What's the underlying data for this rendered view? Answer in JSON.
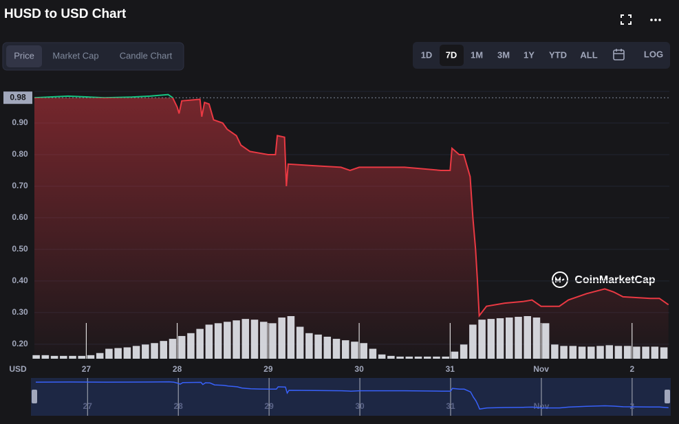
{
  "ui": {
    "title": "HUSD to USD Chart",
    "tabs": [
      "Price",
      "Market Cap",
      "Candle Chart"
    ],
    "ranges": [
      "1D",
      "7D",
      "1M",
      "3M",
      "1Y",
      "YTD",
      "ALL"
    ],
    "log": "LOG",
    "currency": "USD",
    "watermark": "CoinMarketCap"
  },
  "chart_data": {
    "type": "line",
    "color": "#ea3943",
    "color_above": "#16c784",
    "baseline": {
      "value": 0.98,
      "label": "0.98"
    },
    "xlim": [
      26.43,
      33.41
    ],
    "ylim": [
      0.154,
      1.0
    ],
    "xticks": [
      27,
      28,
      29,
      30,
      31,
      {
        "value": 32,
        "label": "Nov"
      },
      {
        "value": 33,
        "label": "2"
      }
    ],
    "yticks": [
      {
        "value": 0.2,
        "label": "0.20"
      },
      {
        "value": 0.3,
        "label": "0.30"
      },
      {
        "value": 0.4,
        "label": "0.40"
      },
      {
        "value": 0.5,
        "label": "0.50"
      },
      {
        "value": 0.6,
        "label": "0.60"
      },
      {
        "value": 0.7,
        "label": "0.70"
      },
      {
        "value": 0.8,
        "label": "0.80"
      },
      {
        "value": 0.9,
        "label": "0.90"
      }
    ],
    "grid": true,
    "series": [
      {
        "name": "Price",
        "color": "#ea3943",
        "x": [
          26.43,
          26.8,
          27.2,
          27.5,
          27.7,
          27.9,
          27.95,
          28.0,
          28.02,
          28.05,
          28.25,
          28.27,
          28.3,
          28.35,
          28.4,
          28.5,
          28.55,
          28.65,
          28.7,
          28.75,
          28.8,
          28.9,
          29.0,
          29.08,
          29.1,
          29.18,
          29.2,
          29.22,
          29.5,
          29.8,
          29.9,
          30.0,
          30.5,
          30.9,
          31.0,
          31.02,
          31.1,
          31.15,
          31.22,
          31.25,
          31.28,
          31.3,
          31.32,
          31.4,
          31.6,
          31.8,
          31.9,
          32.0,
          32.2,
          32.3,
          32.5,
          32.7,
          32.8,
          32.9,
          33.2,
          33.3,
          33.4
        ],
        "values": [
          0.98,
          0.985,
          0.98,
          0.982,
          0.985,
          0.99,
          0.98,
          0.95,
          0.93,
          0.97,
          0.975,
          0.92,
          0.965,
          0.96,
          0.91,
          0.9,
          0.88,
          0.86,
          0.83,
          0.82,
          0.81,
          0.805,
          0.8,
          0.8,
          0.86,
          0.855,
          0.7,
          0.77,
          0.765,
          0.76,
          0.75,
          0.76,
          0.76,
          0.75,
          0.75,
          0.82,
          0.8,
          0.8,
          0.73,
          0.6,
          0.5,
          0.4,
          0.29,
          0.32,
          0.33,
          0.335,
          0.34,
          0.32,
          0.32,
          0.34,
          0.36,
          0.375,
          0.365,
          0.35,
          0.345,
          0.345,
          0.325
        ]
      }
    ],
    "volume": {
      "color": "#e6e8ee",
      "x": [
        26.45,
        26.55,
        26.65,
        26.75,
        26.85,
        26.95,
        27.05,
        27.15,
        27.25,
        27.35,
        27.45,
        27.55,
        27.65,
        27.75,
        27.85,
        27.95,
        28.05,
        28.15,
        28.25,
        28.35,
        28.45,
        28.55,
        28.65,
        28.75,
        28.85,
        28.95,
        29.05,
        29.15,
        29.25,
        29.35,
        29.45,
        29.55,
        29.65,
        29.75,
        29.85,
        29.95,
        30.05,
        30.15,
        30.25,
        30.35,
        30.45,
        30.55,
        30.65,
        30.75,
        30.85,
        30.95,
        31.05,
        31.15,
        31.25,
        31.35,
        31.45,
        31.55,
        31.65,
        31.75,
        31.85,
        31.95,
        32.05,
        32.15,
        32.25,
        32.35,
        32.45,
        32.55,
        32.65,
        32.75,
        32.85,
        32.95,
        33.05,
        33.15,
        33.25,
        33.35
      ],
      "values": [
        5,
        5,
        4,
        4,
        4,
        4,
        5,
        8,
        14,
        15,
        16,
        18,
        20,
        22,
        25,
        28,
        32,
        36,
        42,
        48,
        50,
        52,
        54,
        56,
        55,
        52,
        50,
        58,
        60,
        45,
        36,
        34,
        31,
        28,
        26,
        24,
        22,
        14,
        6,
        4,
        3,
        3,
        3,
        3,
        3,
        3,
        10,
        20,
        48,
        55,
        56,
        57,
        58,
        59,
        60,
        58,
        50,
        20,
        18,
        18,
        17,
        17,
        18,
        19,
        18,
        18,
        17,
        17,
        17,
        16
      ]
    }
  }
}
